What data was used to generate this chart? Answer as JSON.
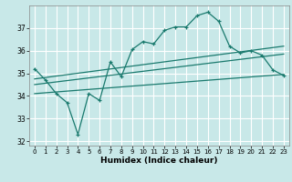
{
  "xlabel": "Humidex (Indice chaleur)",
  "ylabel": "",
  "background_color": "#c8e8e8",
  "grid_color": "#ffffff",
  "line_color": "#1a7a6e",
  "xlim": [
    -0.5,
    23.5
  ],
  "ylim": [
    31.8,
    38.0
  ],
  "yticks": [
    32,
    33,
    34,
    35,
    36,
    37
  ],
  "xticks": [
    0,
    1,
    2,
    3,
    4,
    5,
    6,
    7,
    8,
    9,
    10,
    11,
    12,
    13,
    14,
    15,
    16,
    17,
    18,
    19,
    20,
    21,
    22,
    23
  ],
  "main_x": [
    0,
    1,
    2,
    3,
    4,
    5,
    6,
    7,
    8,
    9,
    10,
    11,
    12,
    13,
    14,
    15,
    16,
    17,
    18,
    19,
    20,
    21,
    22,
    23
  ],
  "main_y": [
    35.2,
    34.7,
    34.1,
    33.7,
    32.3,
    34.1,
    33.8,
    35.5,
    34.85,
    36.05,
    36.4,
    36.3,
    36.9,
    37.05,
    37.05,
    37.55,
    37.7,
    37.3,
    36.2,
    35.9,
    36.0,
    35.8,
    35.15,
    34.9
  ],
  "line1_x": [
    0,
    23
  ],
  "line1_y": [
    34.75,
    36.2
  ],
  "line2_x": [
    0,
    23
  ],
  "line2_y": [
    34.5,
    35.85
  ],
  "line3_x": [
    0,
    23
  ],
  "line3_y": [
    34.1,
    34.95
  ]
}
